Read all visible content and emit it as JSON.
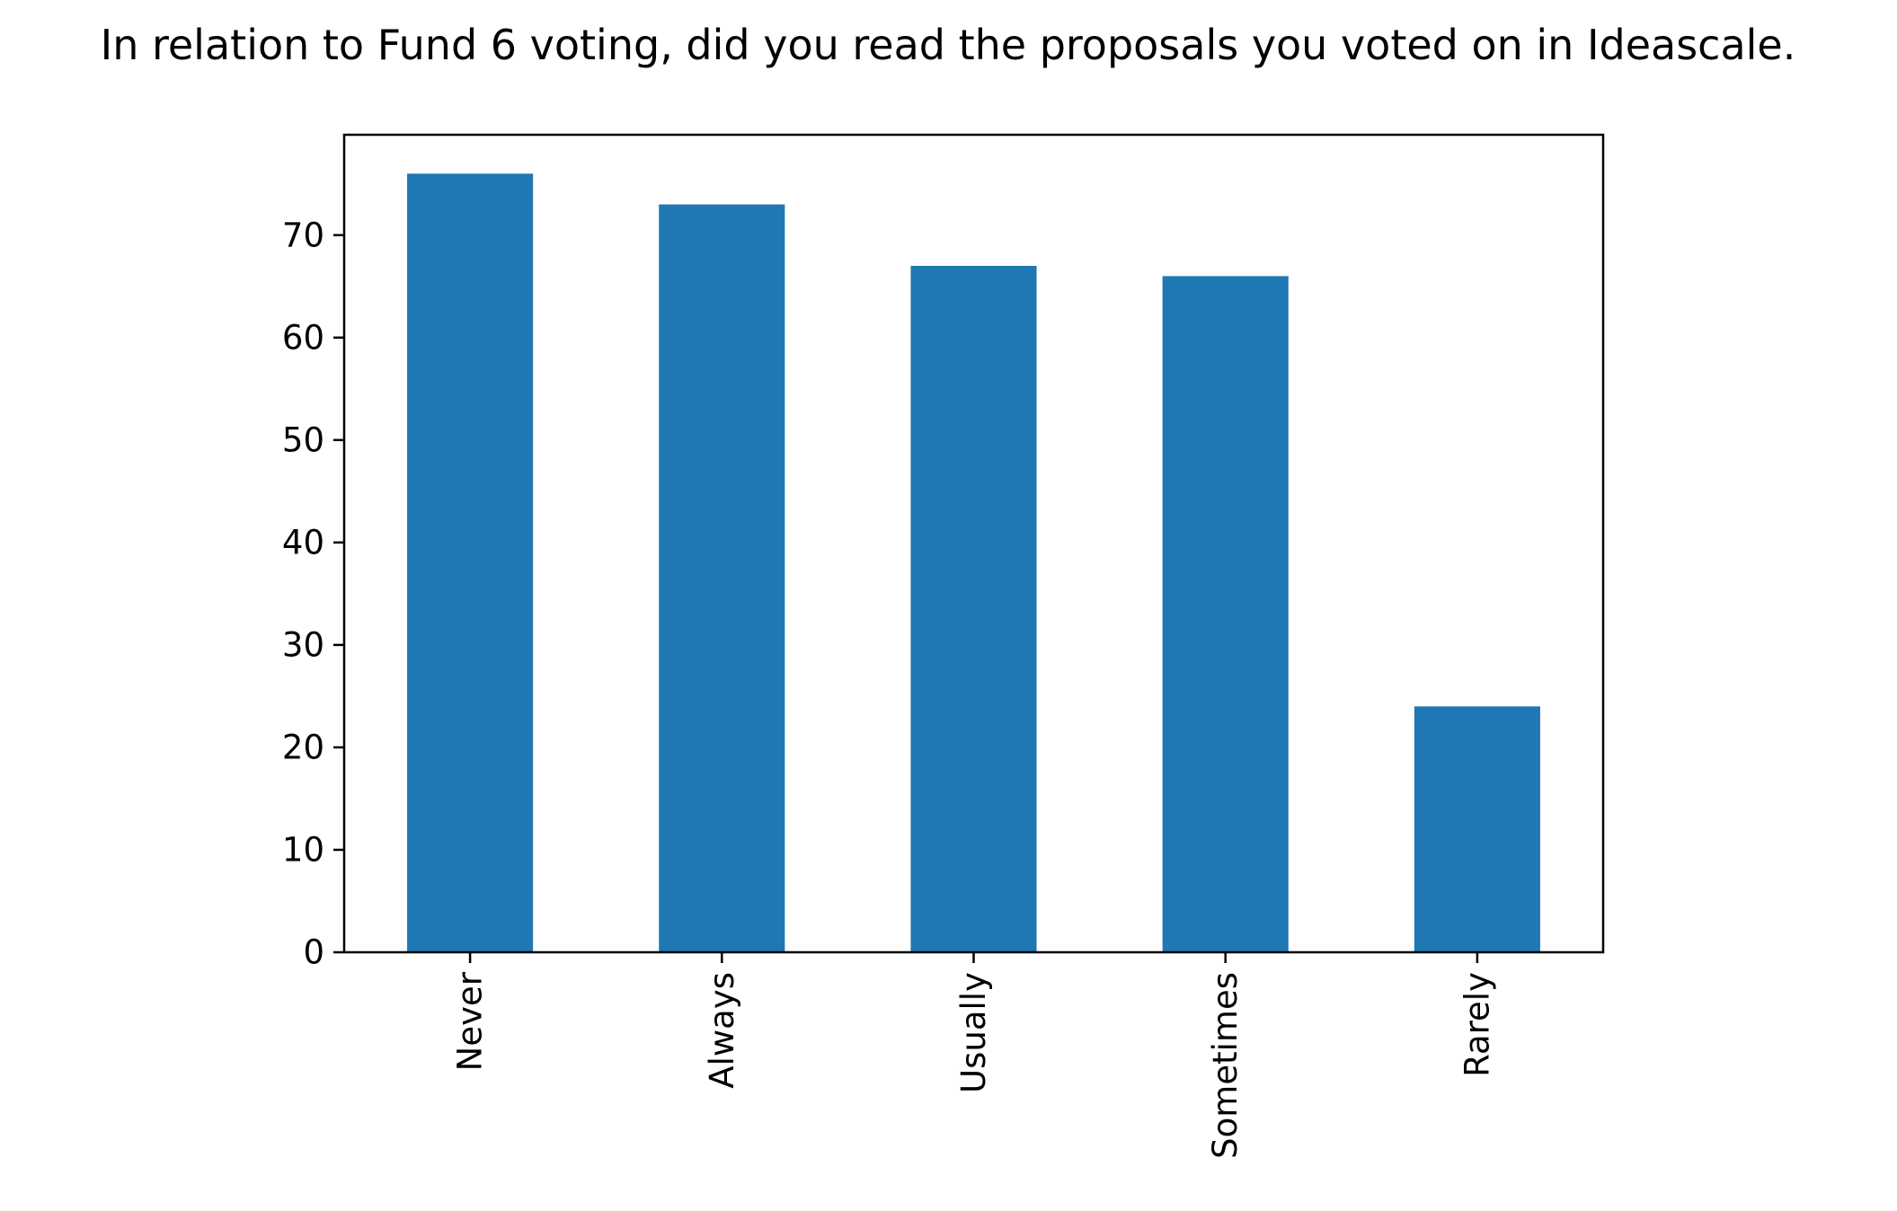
{
  "chart_data": {
    "type": "bar",
    "title": "In relation to Fund 6 voting, did you read the proposals you voted on in Ideascale.",
    "xlabel": "",
    "ylabel": "",
    "categories": [
      "Never",
      "Always",
      "Usually",
      "Sometimes",
      "Rarely"
    ],
    "values": [
      76,
      73,
      67,
      66,
      24
    ],
    "ylim": [
      0,
      79.8
    ],
    "yticks": [
      0,
      10,
      20,
      30,
      40,
      50,
      60,
      70
    ],
    "grid": false,
    "legend": "none",
    "bar_color": "#1f77b4",
    "xtick_rotation": "vertical"
  }
}
